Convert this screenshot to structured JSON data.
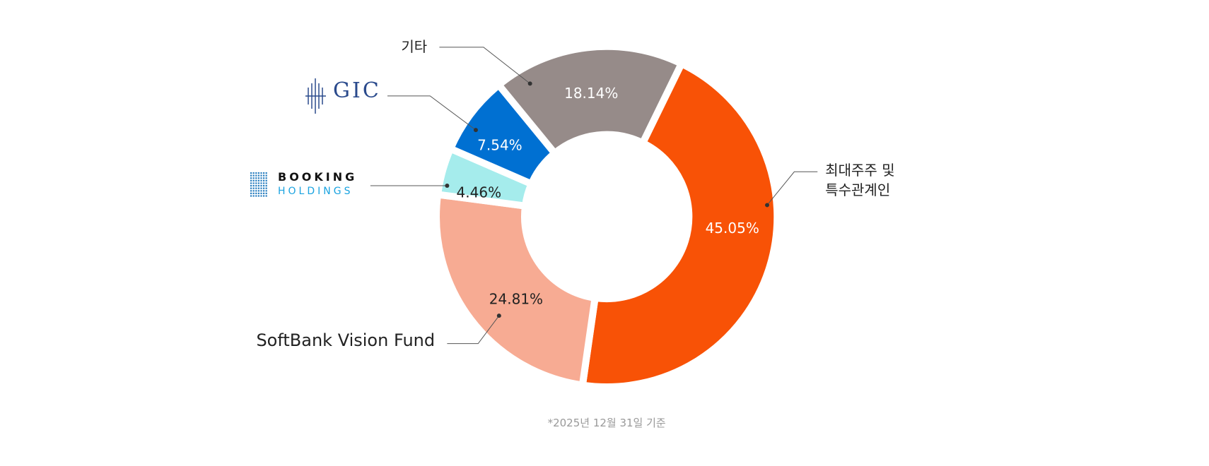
{
  "chart_data": {
    "type": "donut",
    "categories": [
      "최대주주 및 특수관계인",
      "SoftBank Vision Fund",
      "BOOKING HOLDINGS",
      "GIC",
      "기타"
    ],
    "values": [
      45.05,
      24.81,
      4.46,
      7.54,
      18.14
    ],
    "value_labels": [
      "45.05%",
      "24.81%",
      "4.46%",
      "7.54%",
      "18.14%"
    ],
    "colors": [
      "#f85206",
      "#f7ab93",
      "#a5ecec",
      "#0070d2",
      "#968b89"
    ],
    "footnote": "*2025년 12월 31일 기준"
  }
}
